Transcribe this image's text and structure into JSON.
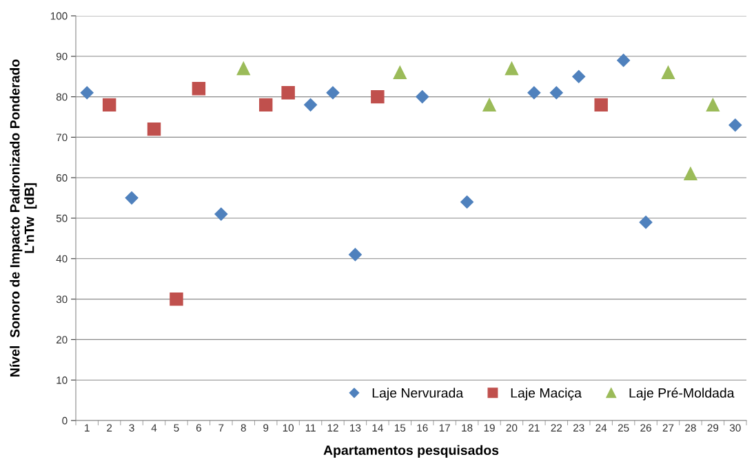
{
  "chart_data": {
    "type": "scatter",
    "xlabel": "Apartamentos pesquisados",
    "ylabel": "Nível  Sonoro de Impacto Padronizado Ponderado\nL'nTw  [dB]",
    "categories": [
      "1",
      "2",
      "3",
      "4",
      "5",
      "6",
      "7",
      "8",
      "9",
      "10",
      "11",
      "12",
      "13",
      "14",
      "15",
      "16",
      "17",
      "18",
      "19",
      "20",
      "21",
      "22",
      "23",
      "24",
      "25",
      "26",
      "27",
      "28",
      "29",
      "30"
    ],
    "series": [
      {
        "name": "Laje Nervurada",
        "color": "#4f81bd",
        "marker": "diamond",
        "values": [
          81,
          null,
          55,
          null,
          null,
          null,
          51,
          null,
          null,
          null,
          78,
          81,
          41,
          null,
          null,
          80,
          null,
          54,
          null,
          null,
          81,
          81,
          85,
          null,
          89,
          49,
          null,
          null,
          null,
          73
        ]
      },
      {
        "name": "Laje Maciça",
        "color": "#c0504d",
        "marker": "square",
        "values": [
          null,
          78,
          null,
          72,
          30,
          82,
          null,
          null,
          78,
          81,
          null,
          null,
          null,
          80,
          null,
          null,
          null,
          null,
          null,
          null,
          null,
          null,
          null,
          78,
          null,
          null,
          null,
          null,
          null,
          null
        ]
      },
      {
        "name": "Laje Pré-Moldada",
        "color": "#9bbb59",
        "marker": "triangle",
        "values": [
          null,
          null,
          null,
          null,
          null,
          null,
          null,
          87,
          null,
          null,
          null,
          null,
          null,
          null,
          86,
          null,
          null,
          null,
          78,
          87,
          null,
          null,
          null,
          null,
          null,
          null,
          86,
          61,
          78,
          null
        ]
      }
    ],
    "ylim": [
      0,
      100
    ],
    "yticks": [
      0,
      10,
      20,
      30,
      40,
      50,
      60,
      70,
      80,
      90,
      100
    ],
    "grid": "y",
    "legend": "bottom right"
  }
}
